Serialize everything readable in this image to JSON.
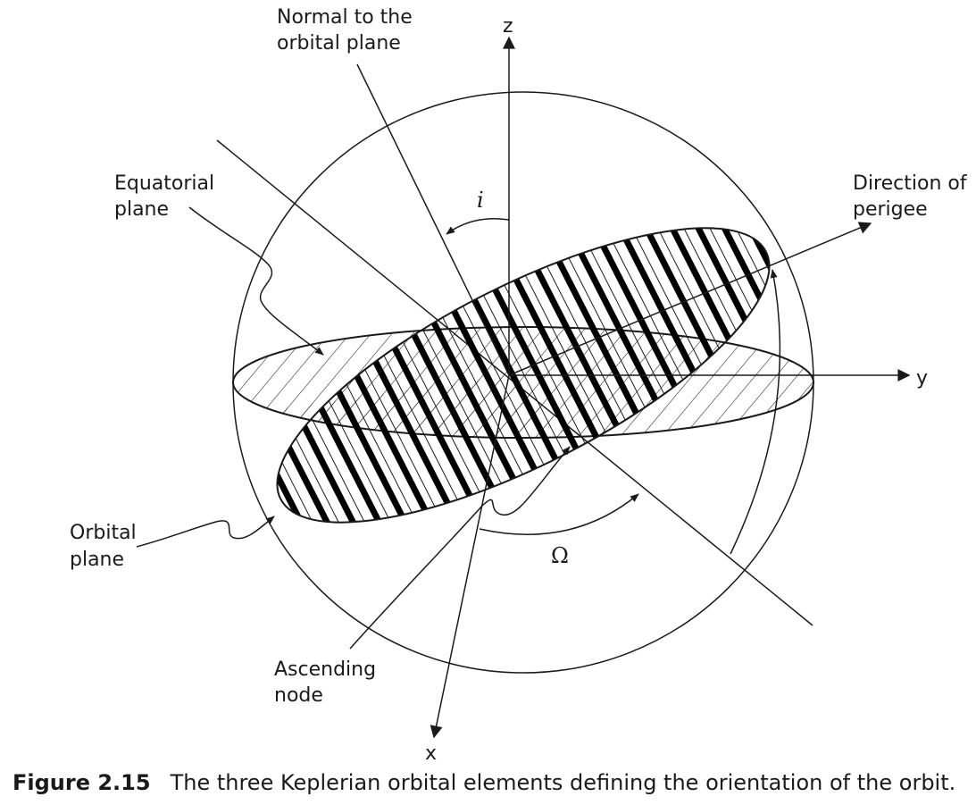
{
  "labels": {
    "z_axis": "z",
    "y_axis": "y",
    "x_axis": "x",
    "normal_line1": "Normal to the",
    "normal_line2": "orbital plane",
    "equatorial_line1": "Equatorial",
    "equatorial_line2": "plane",
    "perigee_line1": "Direction of",
    "perigee_line2": "perigee",
    "orbital_line1": "Orbital",
    "orbital_line2": "plane",
    "ascending_line1": "Ascending",
    "ascending_line2": "node",
    "inclination": "i",
    "raan": "Ω"
  },
  "caption": {
    "number": "Figure 2.15",
    "text": "The three Keplerian orbital elements defining the orientation of the orbit."
  }
}
